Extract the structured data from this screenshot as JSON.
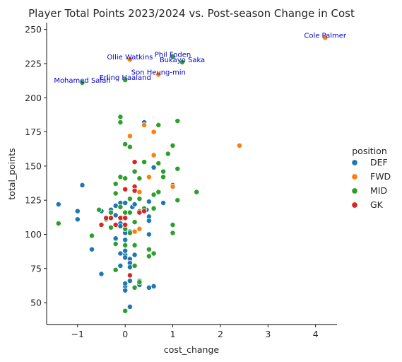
{
  "chart_data": {
    "type": "scatter",
    "title": "Player Total Points 2023/2024 vs. Post-season Change in Cost",
    "xlabel": "cost_change",
    "ylabel": "total_points",
    "xlim": [
      -1.65,
      4.45
    ],
    "ylim": [
      34,
      255
    ],
    "xticks": [
      -1,
      0,
      1,
      2,
      3,
      4
    ],
    "yticks": [
      50,
      75,
      100,
      125,
      150,
      175,
      200,
      225,
      250
    ],
    "grid": false,
    "legend": {
      "title": "position",
      "placement": "right"
    },
    "colors": {
      "DEF": "#1f77b4",
      "FWD": "#ff7f0e",
      "MID": "#2ca02c",
      "GK": "#d62728",
      "annotation": "#0000cc"
    },
    "series": [
      {
        "name": "DEF",
        "points": [
          [
            -1.4,
            122
          ],
          [
            -1.4,
            122
          ],
          [
            -0.9,
            136
          ],
          [
            -0.7,
            89
          ],
          [
            -0.7,
            89
          ],
          [
            -1.0,
            117
          ],
          [
            -1.0,
            111
          ],
          [
            -0.5,
            71
          ],
          [
            -0.5,
            117
          ],
          [
            -0.3,
            118
          ],
          [
            -0.2,
            121
          ],
          [
            -0.1,
            123
          ],
          [
            0.0,
            123
          ],
          [
            -0.2,
            114
          ],
          [
            -0.1,
            108
          ],
          [
            -0.1,
            106
          ],
          [
            0.0,
            96
          ],
          [
            0.0,
            85
          ],
          [
            0.0,
            88
          ],
          [
            0.0,
            83
          ],
          [
            0.0,
            62
          ],
          [
            0.0,
            59
          ],
          [
            0.0,
            64
          ],
          [
            0.1,
            47
          ],
          [
            0.1,
            82
          ],
          [
            0.1,
            79
          ],
          [
            0.1,
            76
          ],
          [
            0.1,
            66
          ],
          [
            -0.1,
            86
          ],
          [
            -0.1,
            77
          ],
          [
            -0.2,
            97
          ],
          [
            0.0,
            101
          ],
          [
            0.1,
            102
          ],
          [
            0.15,
            120
          ],
          [
            0.2,
            122
          ],
          [
            0.3,
            63
          ],
          [
            0.3,
            66
          ],
          [
            0.4,
            182
          ],
          [
            0.45,
            118
          ],
          [
            0.5,
            124
          ],
          [
            0.5,
            113
          ],
          [
            0.5,
            110
          ],
          [
            0.5,
            100
          ],
          [
            0.5,
            61
          ],
          [
            0.6,
            62
          ],
          [
            0.6,
            149
          ],
          [
            0.8,
            123
          ],
          [
            1.0,
            136
          ],
          [
            1.0,
            135
          ],
          [
            0.2,
            85
          ]
        ]
      },
      {
        "name": "FWD",
        "points": [
          [
            4.2,
            244
          ],
          [
            0.7,
            217
          ],
          [
            0.1,
            228
          ],
          [
            2.4,
            165
          ],
          [
            0.6,
            175
          ],
          [
            0.4,
            180
          ],
          [
            0.1,
            172
          ],
          [
            0.6,
            158
          ],
          [
            0.5,
            142
          ],
          [
            0.3,
            131
          ],
          [
            0.3,
            104
          ],
          [
            0.2,
            102
          ],
          [
            0.0,
            133
          ],
          [
            -0.05,
            112
          ],
          [
            1.0,
            135
          ]
        ]
      },
      {
        "name": "MID",
        "points": [
          [
            -1.4,
            108
          ],
          [
            -0.9,
            211
          ],
          [
            -0.55,
            118
          ],
          [
            -0.7,
            99
          ],
          [
            -0.4,
            111
          ],
          [
            -0.3,
            116
          ],
          [
            -0.3,
            105
          ],
          [
            -0.2,
            137
          ],
          [
            -0.2,
            130
          ],
          [
            -0.2,
            93
          ],
          [
            -0.2,
            74
          ],
          [
            -0.1,
            186
          ],
          [
            -0.1,
            182
          ],
          [
            -0.1,
            142
          ],
          [
            -0.1,
            120
          ],
          [
            0.0,
            213
          ],
          [
            0.0,
            166
          ],
          [
            0.0,
            141
          ],
          [
            0.0,
            116
          ],
          [
            0.0,
            104
          ],
          [
            0.0,
            92
          ],
          [
            0.0,
            44
          ],
          [
            0.1,
            164
          ],
          [
            0.1,
            126
          ],
          [
            0.1,
            116
          ],
          [
            0.1,
            101
          ],
          [
            0.2,
            146
          ],
          [
            0.2,
            133
          ],
          [
            0.2,
            109
          ],
          [
            0.2,
            92
          ],
          [
            0.2,
            77
          ],
          [
            0.2,
            61
          ],
          [
            0.3,
            141
          ],
          [
            0.3,
            126
          ],
          [
            0.3,
            117
          ],
          [
            0.3,
            65
          ],
          [
            0.4,
            153
          ],
          [
            0.4,
            119
          ],
          [
            0.5,
            84
          ],
          [
            0.5,
            89
          ],
          [
            0.6,
            129
          ],
          [
            0.6,
            119
          ],
          [
            0.6,
            86
          ],
          [
            0.7,
            131
          ],
          [
            0.7,
            152
          ],
          [
            0.8,
            146
          ],
          [
            0.8,
            142
          ],
          [
            0.9,
            159
          ],
          [
            1.0,
            230
          ],
          [
            1.0,
            165
          ],
          [
            1.0,
            107
          ],
          [
            1.0,
            101
          ],
          [
            1.1,
            183
          ],
          [
            1.1,
            148
          ],
          [
            1.1,
            125
          ],
          [
            1.2,
            226
          ],
          [
            1.5,
            131
          ],
          [
            0.7,
            180
          ]
        ]
      },
      {
        "name": "GK",
        "points": [
          [
            -0.5,
            107
          ],
          [
            -0.4,
            112
          ],
          [
            -0.3,
            112
          ],
          [
            -0.2,
            107
          ],
          [
            -0.1,
            112
          ],
          [
            0.0,
            112
          ],
          [
            0.0,
            133
          ],
          [
            0.1,
            70
          ],
          [
            0.2,
            153
          ],
          [
            0.2,
            135
          ],
          [
            0.2,
            132
          ],
          [
            0.3,
            116
          ],
          [
            0.4,
            117
          ],
          [
            0.0,
            107
          ]
        ]
      }
    ],
    "annotations": [
      {
        "text": "Cole Palmer",
        "x": 4.2,
        "y": 244
      },
      {
        "text": "Phil Foden",
        "x": 1.0,
        "y": 230
      },
      {
        "text": "Ollie Watkins",
        "x": 0.1,
        "y": 228
      },
      {
        "text": "Bukayo Saka",
        "x": 1.2,
        "y": 226
      },
      {
        "text": "Son Heung-min",
        "x": 0.7,
        "y": 217
      },
      {
        "text": "Erling Haaland",
        "x": 0.0,
        "y": 213
      },
      {
        "text": "Mohamed Salah",
        "x": -0.9,
        "y": 211
      }
    ]
  }
}
